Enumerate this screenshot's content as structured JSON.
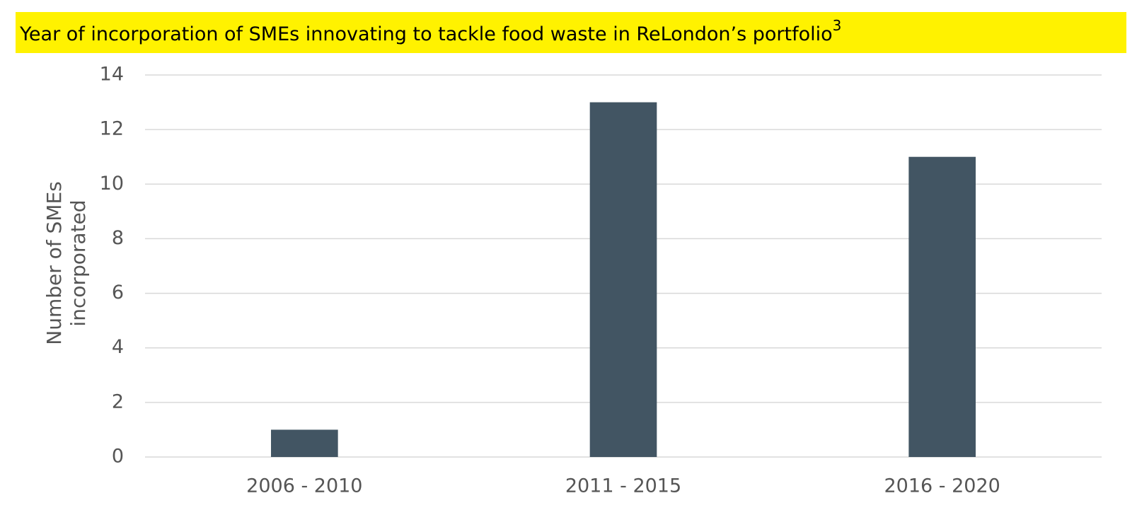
{
  "chart_data": {
    "type": "bar",
    "title": "Year of incorporation of SMEs innovating to tackle food waste in ReLondon’s portfolio",
    "title_note": "3",
    "ylabel": [
      "Number of SMEs",
      "incorporated"
    ],
    "categories": [
      "2006 - 2010",
      "2011 - 2015",
      "2016 - 2020"
    ],
    "values": [
      1,
      13,
      11
    ],
    "color": "#425563",
    "ylim": [
      0,
      14
    ],
    "yticks": [
      0,
      2,
      4,
      6,
      8,
      10,
      12,
      14
    ],
    "grid": true
  }
}
